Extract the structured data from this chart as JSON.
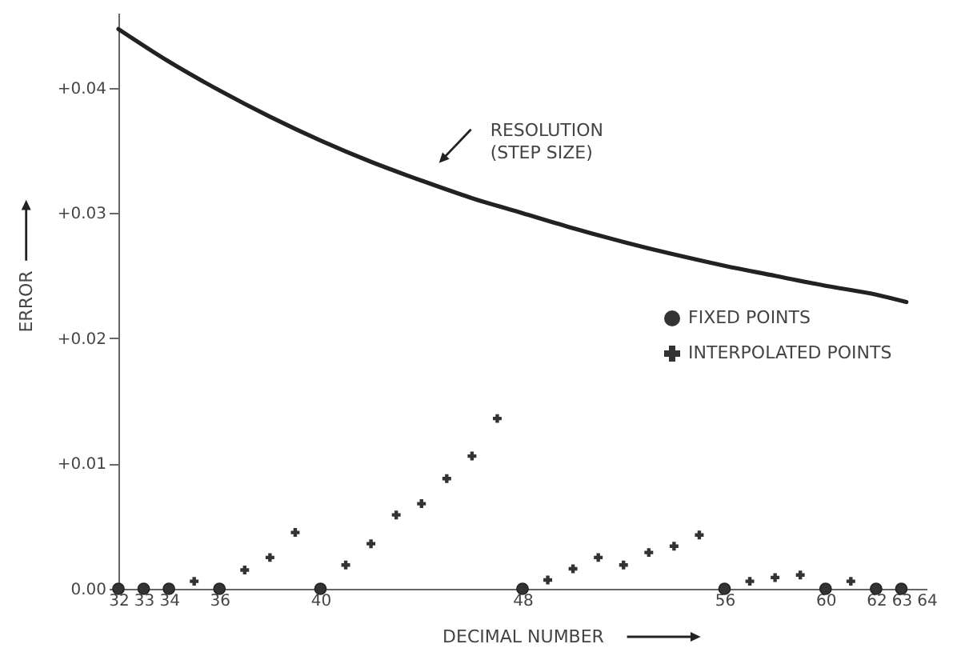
{
  "chart_data": {
    "type": "scatter",
    "xlabel": "DECIMAL NUMBER",
    "ylabel": "ERROR",
    "xlim": [
      32,
      64
    ],
    "xticks": [
      32,
      33,
      34,
      36,
      40,
      48,
      56,
      60,
      62,
      63,
      64
    ],
    "ylim": [
      0,
      0.046
    ],
    "yticks": [
      {
        "value": 0,
        "label": "0.00"
      },
      {
        "value": 0.01,
        "label": "+0.01"
      },
      {
        "value": 0.02,
        "label": "+0.02"
      },
      {
        "value": 0.03,
        "label": "+0.03"
      },
      {
        "value": 0.04,
        "label": "+0.04"
      }
    ],
    "grid": false,
    "legend": "right",
    "annotations": [
      {
        "text": "RESOLUTION\n(STEP SIZE)",
        "x": 45.2,
        "y": 0.0326
      }
    ],
    "series": [
      {
        "type": "line",
        "color": "#222222",
        "line_style": "solid",
        "marker": "none",
        "x": [
          32,
          34,
          36,
          38,
          40,
          42,
          44,
          46,
          48,
          50,
          52,
          54,
          56,
          58,
          60,
          62,
          63.2
        ],
        "values": [
          0.0447,
          0.0421,
          0.0398,
          0.0377,
          0.0358,
          0.0341,
          0.0326,
          0.0312,
          0.03,
          0.0288,
          0.0277,
          0.0267,
          0.0258,
          0.025,
          0.0242,
          0.0235,
          0.0229
        ]
      },
      {
        "name": "FIXED POINTS",
        "color": "#333333",
        "marker": "circle",
        "x": [
          32,
          33,
          34,
          36,
          40,
          48,
          56,
          60,
          62,
          63
        ],
        "values": [
          0,
          0,
          0,
          0,
          0,
          0,
          0,
          0,
          0,
          0
        ]
      },
      {
        "name": "INTERPOLATED POINTS",
        "color": "#333333",
        "marker": "cross",
        "x": [
          35,
          37,
          38,
          39,
          41,
          42,
          43,
          44,
          45,
          46,
          47,
          49,
          50,
          51,
          52,
          53,
          54,
          55,
          57,
          58,
          59,
          61
        ],
        "values": [
          0.0006,
          0.0015,
          0.0025,
          0.0045,
          0.0019,
          0.0036,
          0.0059,
          0.0068,
          0.0088,
          0.0106,
          0.0136,
          0.0007,
          0.0016,
          0.0025,
          0.0019,
          0.0029,
          0.0034,
          0.0043,
          0.0006,
          0.0009,
          0.0011,
          0.0006
        ]
      }
    ]
  }
}
